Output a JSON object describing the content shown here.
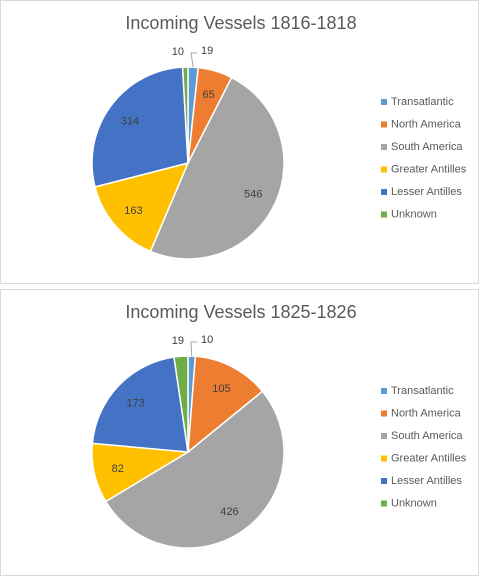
{
  "colors": {
    "Transatlantic": "#5b9bd5",
    "North America": "#ed7d31",
    "South America": "#a5a5a5",
    "Greater Antilles": "#ffc000",
    "Lesser Antilles": "#4472c4",
    "Unknown": "#70ad47"
  },
  "chart_data": [
    {
      "type": "pie",
      "title": "Incoming Vessels 1816-1818",
      "categories": [
        "Transatlantic",
        "North America",
        "South America",
        "Greater Antilles",
        "Lesser Antilles",
        "Unknown"
      ],
      "values": [
        19,
        65,
        546,
        163,
        314,
        10
      ],
      "legend_position": "right",
      "data_labels": true
    },
    {
      "type": "pie",
      "title": "Incoming Vessels 1825-1826",
      "categories": [
        "Transatlantic",
        "North America",
        "South America",
        "Greater Antilles",
        "Lesser Antilles",
        "Unknown"
      ],
      "values": [
        10,
        105,
        426,
        82,
        173,
        19
      ],
      "legend_position": "right",
      "data_labels": true
    }
  ]
}
